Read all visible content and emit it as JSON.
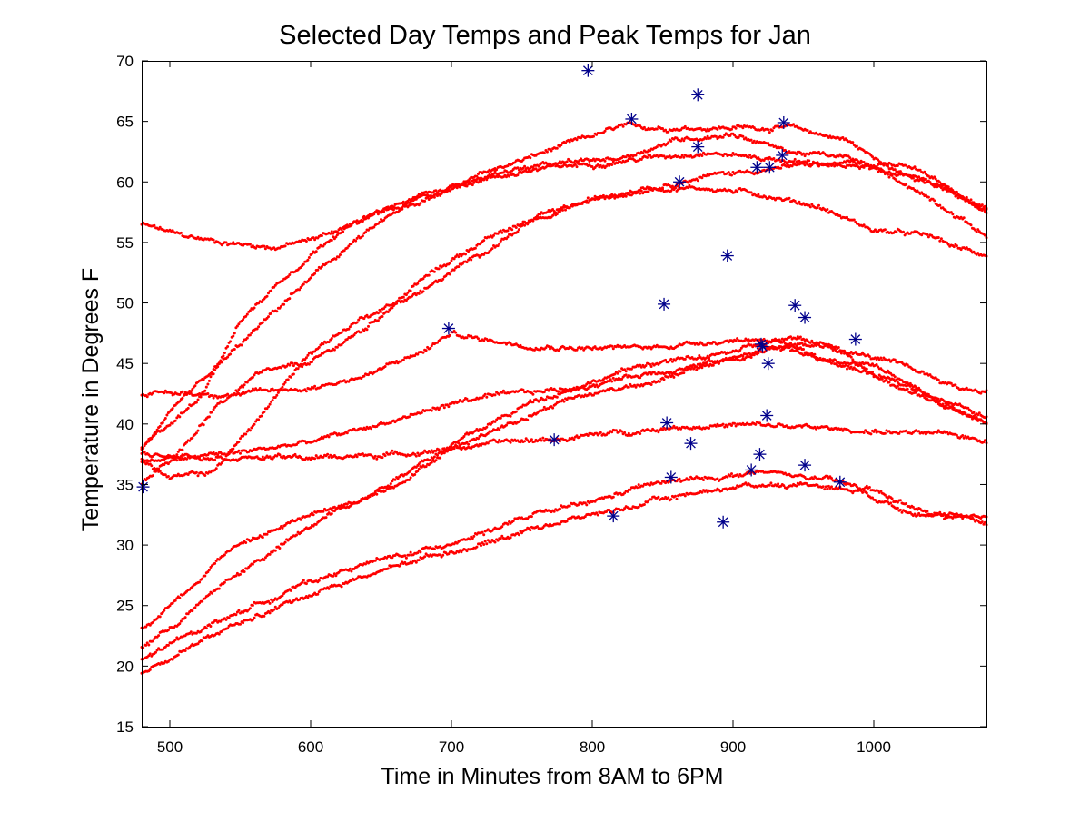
{
  "chart_data": {
    "type": "scatter",
    "title": "Selected Day Temps and Peak Temps for Jan",
    "xlabel": "Time in Minutes from 8AM to 6PM",
    "ylabel": "Temperature in Degrees F",
    "xlim": [
      480,
      1080
    ],
    "ylim": [
      15,
      70
    ],
    "xticks": [
      500,
      600,
      700,
      800,
      900,
      1000
    ],
    "yticks": [
      15,
      20,
      25,
      30,
      35,
      40,
      45,
      50,
      55,
      60,
      65,
      70
    ],
    "grid": false,
    "colors": {
      "daily": "#ff0000",
      "peaks": "#00008b",
      "axis": "#000000"
    },
    "series": [
      {
        "style": "red-dots",
        "days": [
          [
            [
              480,
              56.5
            ],
            [
              510,
              55.5
            ],
            [
              540,
              55
            ],
            [
              575,
              54.6
            ],
            [
              600,
              55.2
            ],
            [
              640,
              57
            ],
            [
              690,
              59
            ],
            [
              730,
              61
            ],
            [
              780,
              63
            ],
            [
              820,
              64.5
            ],
            [
              860,
              64.5
            ],
            [
              900,
              64.5
            ],
            [
              940,
              64.5
            ],
            [
              980,
              63.5
            ],
            [
              1000,
              62
            ],
            [
              1030,
              61
            ],
            [
              1060,
              59
            ],
            [
              1080,
              57.5
            ]
          ],
          [
            [
              480,
              35
            ],
            [
              500,
              37
            ],
            [
              530,
              41
            ],
            [
              560,
              44
            ],
            [
              600,
              45
            ],
            [
              640,
              48
            ],
            [
              680,
              52
            ],
            [
              720,
              55
            ],
            [
              760,
              57
            ],
            [
              800,
              58.5
            ],
            [
              840,
              59.5
            ],
            [
              880,
              59.5
            ],
            [
              920,
              59
            ],
            [
              960,
              58
            ],
            [
              1000,
              56
            ],
            [
              1040,
              55.5
            ],
            [
              1060,
              54.5
            ],
            [
              1080,
              54
            ]
          ],
          [
            [
              480,
              38
            ],
            [
              510,
              42
            ],
            [
              550,
              46.5
            ],
            [
              590,
              51
            ],
            [
              630,
              55
            ],
            [
              680,
              59
            ],
            [
              720,
              60.2
            ],
            [
              760,
              61
            ],
            [
              800,
              61.5
            ],
            [
              840,
              62
            ],
            [
              880,
              62.5
            ],
            [
              920,
              62
            ],
            [
              960,
              61.5
            ],
            [
              1000,
              61.5
            ],
            [
              1040,
              60
            ],
            [
              1080,
              57.5
            ]
          ],
          [
            [
              480,
              38
            ],
            [
              520,
              42
            ],
            [
              550,
              48.5
            ],
            [
              580,
              52
            ],
            [
              620,
              56
            ],
            [
              660,
              58
            ],
            [
              700,
              59.5
            ],
            [
              740,
              61
            ],
            [
              780,
              61.5
            ],
            [
              820,
              62
            ],
            [
              860,
              63.5
            ],
            [
              900,
              64
            ],
            [
              940,
              62.5
            ],
            [
              980,
              62
            ],
            [
              1020,
              60
            ],
            [
              1050,
              58
            ],
            [
              1080,
              55.5
            ]
          ],
          [
            [
              480,
              37
            ],
            [
              500,
              35.5
            ],
            [
              530,
              36
            ],
            [
              560,
              40
            ],
            [
              600,
              46
            ],
            [
              640,
              49
            ],
            [
              680,
              51
            ],
            [
              720,
              54
            ],
            [
              760,
              57
            ],
            [
              800,
              58.5
            ],
            [
              840,
              59.5
            ],
            [
              880,
              60.5
            ],
            [
              920,
              61
            ],
            [
              960,
              61.5
            ],
            [
              1000,
              61
            ],
            [
              1040,
              60
            ],
            [
              1060,
              59
            ],
            [
              1080,
              58
            ]
          ],
          [
            [
              480,
              42.5
            ],
            [
              550,
              42.5
            ],
            [
              600,
              43
            ],
            [
              640,
              44
            ],
            [
              680,
              46
            ],
            [
              700,
              47.5
            ],
            [
              720,
              47
            ],
            [
              760,
              46.5
            ],
            [
              800,
              46.3
            ],
            [
              840,
              46.3
            ],
            [
              880,
              46.8
            ],
            [
              910,
              47
            ],
            [
              940,
              47
            ],
            [
              960,
              46.5
            ],
            [
              1000,
              45.5
            ],
            [
              1040,
              44
            ],
            [
              1060,
              43
            ],
            [
              1080,
              42.7
            ]
          ],
          [
            [
              480,
              37
            ],
            [
              540,
              37.5
            ],
            [
              600,
              38.5
            ],
            [
              650,
              40
            ],
            [
              680,
              41
            ],
            [
              710,
              42
            ],
            [
              750,
              42.5
            ],
            [
              790,
              43
            ],
            [
              830,
              44
            ],
            [
              880,
              45
            ],
            [
              910,
              45.5
            ],
            [
              930,
              47
            ],
            [
              960,
              45.5
            ],
            [
              1000,
              44
            ],
            [
              1040,
              42.5
            ],
            [
              1080,
              40.5
            ]
          ],
          [
            [
              480,
              37.5
            ],
            [
              540,
              37.3
            ],
            [
              600,
              37.2
            ],
            [
              660,
              37.5
            ],
            [
              700,
              38
            ],
            [
              740,
              38.5
            ],
            [
              780,
              38.8
            ],
            [
              820,
              39.3
            ],
            [
              860,
              39.8
            ],
            [
              900,
              39.9
            ],
            [
              940,
              39.8
            ],
            [
              980,
              39.5
            ],
            [
              1020,
              39.3
            ],
            [
              1060,
              39
            ],
            [
              1080,
              38.7
            ]
          ],
          [
            [
              480,
              23
            ],
            [
              510,
              26
            ],
            [
              540,
              29.5
            ],
            [
              570,
              31
            ],
            [
              600,
              32.5
            ],
            [
              640,
              34
            ],
            [
              680,
              37
            ],
            [
              720,
              39.5
            ],
            [
              760,
              42
            ],
            [
              800,
              43.5
            ],
            [
              840,
              45
            ],
            [
              880,
              45.5
            ],
            [
              900,
              46
            ],
            [
              920,
              46.5
            ],
            [
              960,
              45.5
            ],
            [
              1000,
              45
            ],
            [
              1030,
              43
            ],
            [
              1060,
              41
            ],
            [
              1080,
              40
            ]
          ],
          [
            [
              480,
              21.5
            ],
            [
              510,
              24
            ],
            [
              540,
              27
            ],
            [
              580,
              30
            ],
            [
              620,
              33
            ],
            [
              660,
              35
            ],
            [
              700,
              38
            ],
            [
              740,
              40
            ],
            [
              780,
              42
            ],
            [
              820,
              43
            ],
            [
              860,
              44
            ],
            [
              900,
              45.5
            ],
            [
              940,
              46.5
            ],
            [
              970,
              46.5
            ],
            [
              1000,
              44
            ],
            [
              1040,
              42
            ],
            [
              1080,
              40
            ]
          ],
          [
            [
              480,
              20.5
            ],
            [
              520,
              23
            ],
            [
              560,
              25
            ],
            [
              600,
              27
            ],
            [
              640,
              28.5
            ],
            [
              680,
              29.5
            ],
            [
              720,
              31
            ],
            [
              760,
              32.5
            ],
            [
              800,
              33.5
            ],
            [
              840,
              35
            ],
            [
              880,
              35.5
            ],
            [
              920,
              36
            ],
            [
              960,
              35.5
            ],
            [
              1000,
              34.5
            ],
            [
              1020,
              33.5
            ],
            [
              1040,
              32.5
            ],
            [
              1080,
              32
            ]
          ],
          [
            [
              480,
              19.5
            ],
            [
              520,
              22
            ],
            [
              560,
              24
            ],
            [
              600,
              26
            ],
            [
              640,
              27.5
            ],
            [
              680,
              29
            ],
            [
              720,
              30
            ],
            [
              760,
              31.5
            ],
            [
              800,
              32.5
            ],
            [
              840,
              33.5
            ],
            [
              880,
              34.5
            ],
            [
              920,
              35
            ],
            [
              960,
              35
            ],
            [
              990,
              34.5
            ],
            [
              1020,
              33
            ],
            [
              1050,
              32.5
            ],
            [
              1080,
              31.8
            ]
          ]
        ]
      },
      {
        "style": "blue-asterisks",
        "points": [
          [
            481,
            34.8
          ],
          [
            698,
            47.9
          ],
          [
            773,
            38.7
          ],
          [
            797,
            69.2
          ],
          [
            815,
            32.4
          ],
          [
            828,
            65.2
          ],
          [
            851,
            49.9
          ],
          [
            853,
            40.1
          ],
          [
            856,
            35.6
          ],
          [
            862,
            60
          ],
          [
            870,
            38.4
          ],
          [
            875,
            67.2
          ],
          [
            875,
            62.9
          ],
          [
            893,
            31.9
          ],
          [
            896,
            53.9
          ],
          [
            913,
            36.2
          ],
          [
            917,
            61.2
          ],
          [
            919,
            37.5
          ],
          [
            920,
            46.6
          ],
          [
            921,
            46.4
          ],
          [
            924,
            40.7
          ],
          [
            925,
            45
          ],
          [
            926,
            61.2
          ],
          [
            935,
            62.2
          ],
          [
            936,
            64.9
          ],
          [
            944,
            49.8
          ],
          [
            951,
            48.8
          ],
          [
            951,
            36.6
          ],
          [
            976,
            35.2
          ],
          [
            987,
            47
          ]
        ]
      }
    ]
  }
}
